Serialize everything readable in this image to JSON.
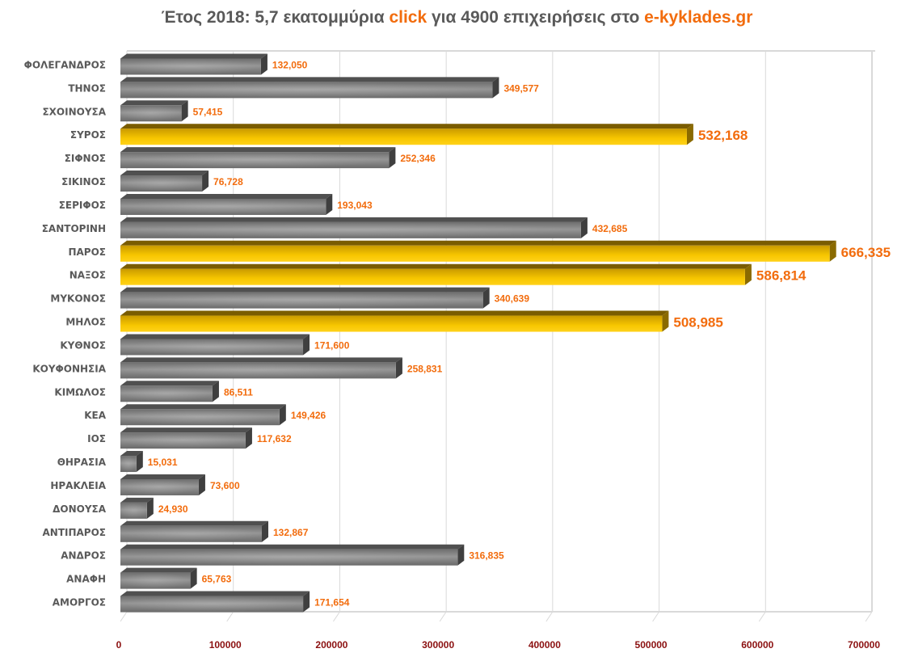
{
  "chart_data": {
    "type": "bar",
    "orientation": "horizontal",
    "style": "3d",
    "title_parts": [
      {
        "text": "Έτος 2018: 5,7 εκατομμύρια ",
        "highlight": false
      },
      {
        "text": "click",
        "highlight": true
      },
      {
        "text": " για 4900 επιχειρήσεις στο ",
        "highlight": false
      },
      {
        "text": "e-kyklades.gr",
        "highlight": true
      }
    ],
    "title": "Έτος 2018: 5,7 εκατομμύρια click για 4900 επιχειρήσεις στο e-kyklades.gr",
    "xlabel": "",
    "ylabel": "",
    "xlim": [
      0,
      700000
    ],
    "x_ticks": [
      0,
      100000,
      200000,
      300000,
      400000,
      500000,
      600000,
      700000
    ],
    "x_tick_labels": [
      "0",
      "100000",
      "200000",
      "300000",
      "400000",
      "500000",
      "600000",
      "700000"
    ],
    "grid": true,
    "legend": "none",
    "colors": {
      "normal_bar": "#7f7f7f",
      "highlight_bar": "#e6b000",
      "data_label": "#f26c0d",
      "category_label": "#595959",
      "tick_label": "#8b1010",
      "title": "#595959",
      "title_highlight": "#f26c0d"
    },
    "categories": [
      "ΦΟΛΕΓΑΝΔΡΟΣ",
      "ΤΗΝΟΣ",
      "ΣΧΟΙΝΟΥΣΑ",
      "ΣΥΡΟΣ",
      "ΣΙΦΝΟΣ",
      "ΣΙΚΙΝΟΣ",
      "ΣΕΡΙΦΟΣ",
      "ΣΑΝΤΟΡΙΝΗ",
      "ΠΑΡΟΣ",
      "ΝΑΞΟΣ",
      "ΜΥΚΟΝΟΣ",
      "ΜΗΛΟΣ",
      "ΚΥΘΝΟΣ",
      "ΚΟΥΦΟΝΗΣΙΑ",
      "ΚΙΜΩΛΟΣ",
      "ΚΕΑ",
      "ΙΟΣ",
      "ΘΗΡΑΣΙΑ",
      "ΗΡΑΚΛΕΙΑ",
      "ΔΟΝΟΥΣΑ",
      "ΑΝΤΙΠΑΡΟΣ",
      "ΑΝΔΡΟΣ",
      "ΑΝΑΦΗ",
      "ΑΜΟΡΓΟΣ"
    ],
    "values": [
      132050,
      349577,
      57415,
      532168,
      252346,
      76728,
      193043,
      432685,
      666335,
      586814,
      340639,
      508985,
      171600,
      258831,
      86511,
      149426,
      117632,
      15031,
      73600,
      24930,
      132867,
      316835,
      65763,
      171654
    ],
    "value_labels": [
      "132,050",
      "349,577",
      "57,415",
      "532,168",
      "252,346",
      "76,728",
      "193,043",
      "432,685",
      "666,335",
      "586,814",
      "340,639",
      "508,985",
      "171,600",
      "258,831",
      "86,511",
      "149,426",
      "117,632",
      "15,031",
      "73,600",
      "24,930",
      "132,867",
      "316,835",
      "65,763",
      "171,654"
    ],
    "highlighted": [
      false,
      false,
      false,
      true,
      false,
      false,
      false,
      false,
      true,
      true,
      false,
      true,
      false,
      false,
      false,
      false,
      false,
      false,
      false,
      false,
      false,
      false,
      false,
      false
    ]
  }
}
